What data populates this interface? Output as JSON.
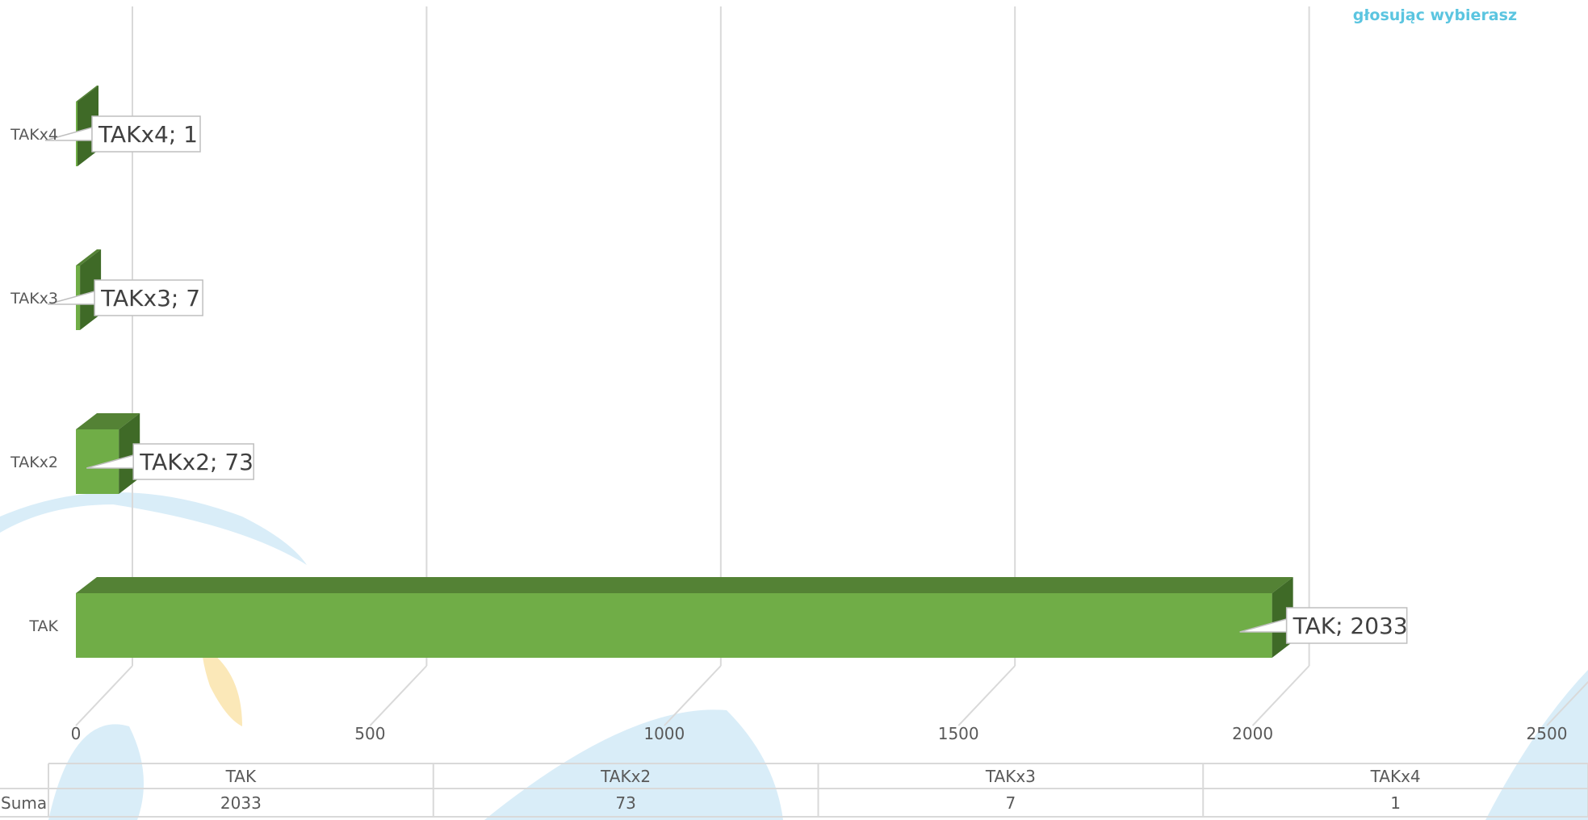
{
  "brand": {
    "tagline": "głosując wybierasz"
  },
  "colors": {
    "bar_front": "#70ad47",
    "bar_top": "#548235",
    "bar_side": "#3f6a27",
    "gridline": "#d9d9d9",
    "watermark": "#cfe9f6",
    "text": "#595959"
  },
  "chart_data": {
    "type": "bar",
    "orientation": "horizontal",
    "three_d": true,
    "categories": [
      "TAK",
      "TAKx2",
      "TAKx3",
      "TAKx4"
    ],
    "series": [
      {
        "name": "Suma",
        "values": [
          2033,
          73,
          7,
          1
        ]
      }
    ],
    "data_labels": [
      "TAK; 2033",
      "TAKx2; 73",
      "TAKx3; 7",
      "TAKx4; 1"
    ],
    "xlim": [
      0,
      2500
    ],
    "xticks": [
      0,
      500,
      1000,
      1500,
      2000,
      2500
    ],
    "grid": true,
    "data_table": {
      "row_header": "Suma",
      "columns": [
        "TAK",
        "TAKx2",
        "TAKx3",
        "TAKx4"
      ],
      "values": [
        "2033",
        "73",
        "7",
        "1"
      ]
    }
  }
}
